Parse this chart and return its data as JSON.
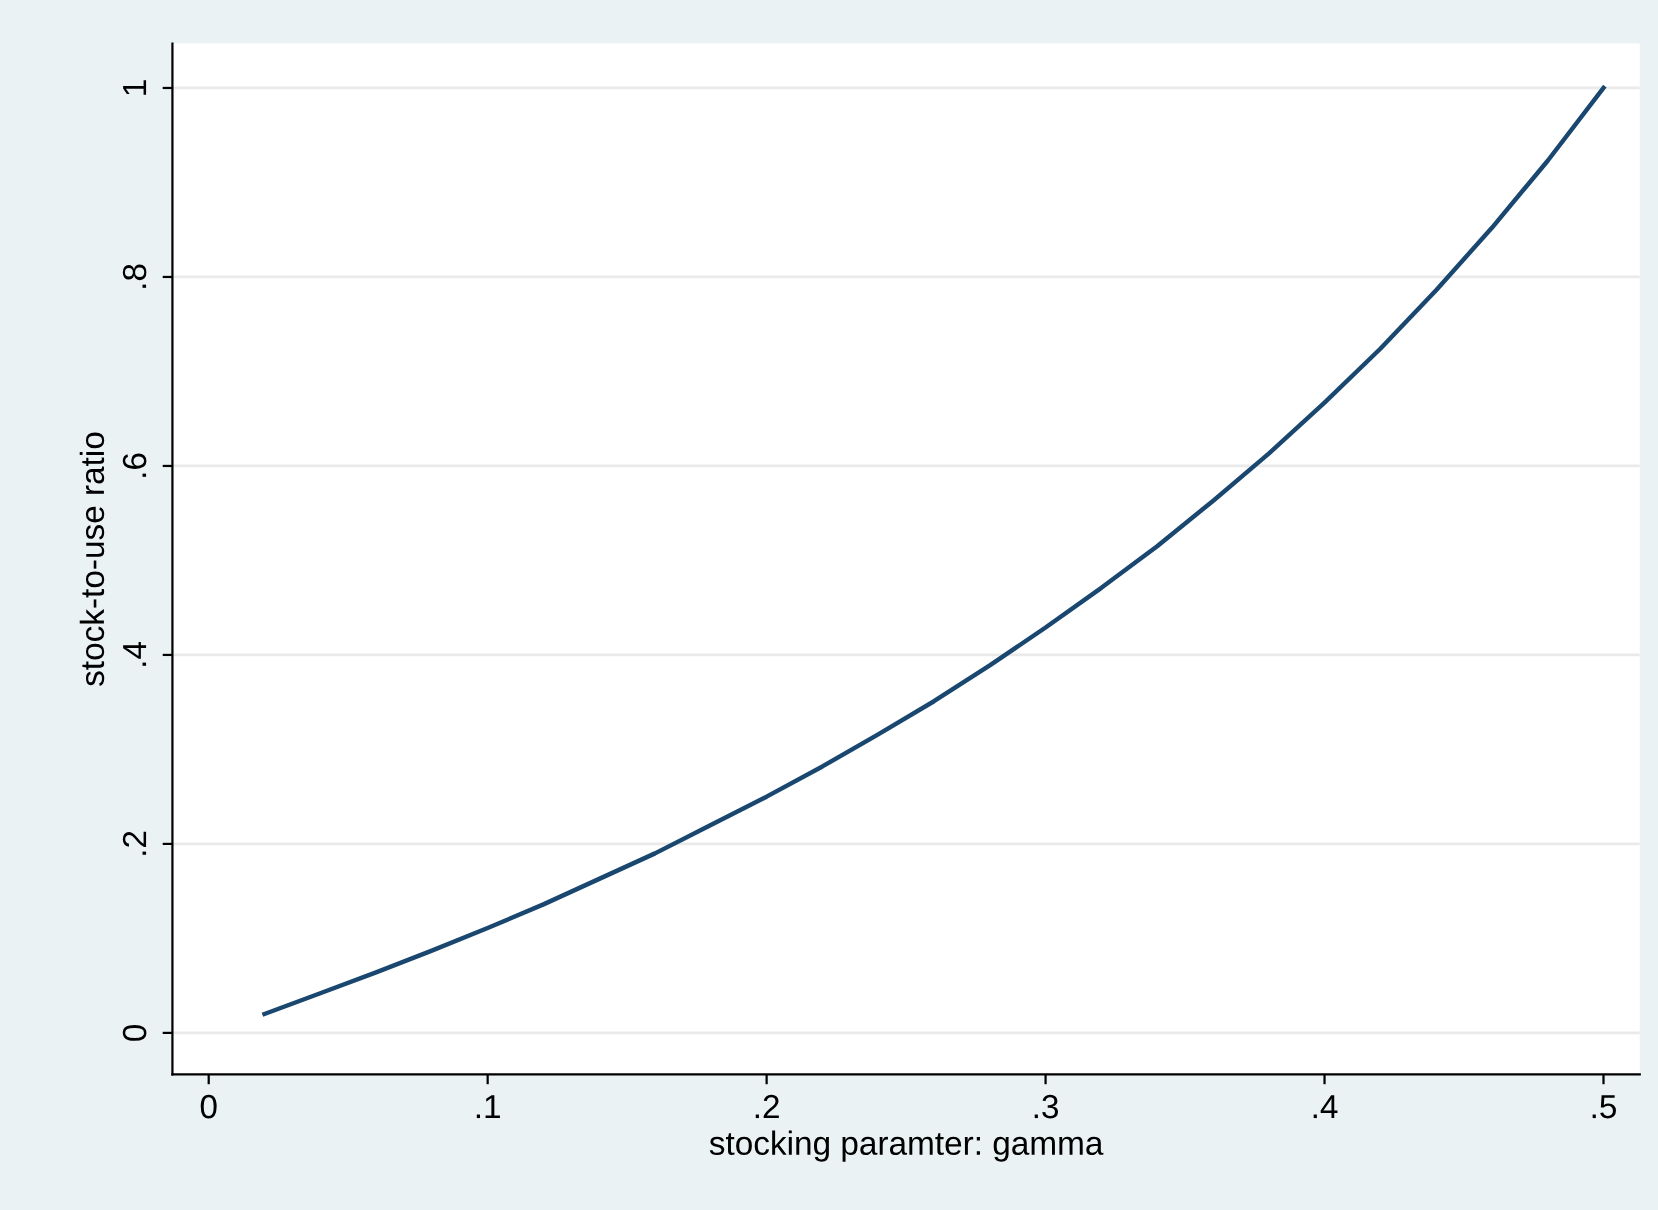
{
  "chart_data": {
    "type": "line",
    "xlabel": "stocking paramter: gamma",
    "ylabel": "stock-to-use ratio",
    "x": [
      0.02,
      0.04,
      0.06,
      0.08,
      0.1,
      0.12,
      0.14,
      0.16,
      0.18,
      0.2,
      0.22,
      0.24,
      0.26,
      0.28,
      0.3,
      0.32,
      0.34,
      0.36,
      0.38,
      0.4,
      0.42,
      0.44,
      0.46,
      0.48,
      0.5
    ],
    "series": [
      {
        "color": "#1a476f",
        "values": [
          0.02,
          0.042,
          0.064,
          0.087,
          0.111,
          0.136,
          0.163,
          0.19,
          0.22,
          0.25,
          0.282,
          0.316,
          0.351,
          0.389,
          0.429,
          0.471,
          0.515,
          0.563,
          0.613,
          0.667,
          0.724,
          0.786,
          0.852,
          0.923,
          1.0
        ]
      }
    ],
    "xlim": [
      -0.013,
      0.513
    ],
    "ylim": [
      -0.044,
      1.047
    ],
    "xticks": [
      0,
      {
        "value": 0.1,
        "label": ".1"
      },
      {
        "value": 0.2,
        "label": ".2"
      },
      {
        "value": 0.3,
        "label": ".3"
      },
      {
        "value": 0.4,
        "label": ".4"
      },
      {
        "value": 0.5,
        "label": ".5"
      }
    ],
    "yticks": [
      0,
      {
        "value": 0.2,
        "label": ".2"
      },
      {
        "value": 0.4,
        "label": ".4"
      },
      {
        "value": 0.6,
        "label": ".6"
      },
      {
        "value": 0.8,
        "label": ".8"
      },
      1
    ],
    "grid": "y",
    "legend": false,
    "marker": "none",
    "line_style": "solid"
  }
}
